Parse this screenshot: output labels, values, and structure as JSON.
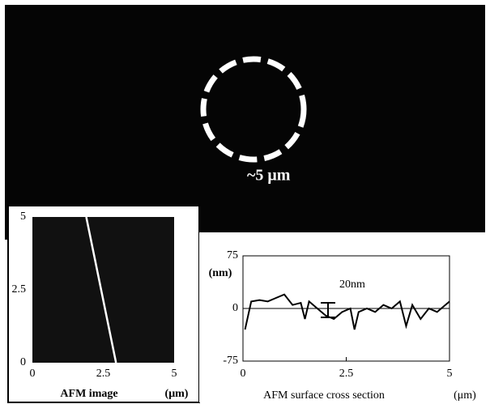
{
  "micrograph": {
    "scale_label": "~5 μm"
  },
  "afm_image": {
    "title": "AFM image",
    "unit": "(μm)",
    "xlim": [
      0,
      5
    ],
    "ylim": [
      0,
      5
    ],
    "xticks": [
      0,
      {
        "value": 2.5,
        "label": "2.5"
      },
      5
    ],
    "yticks": [
      0,
      {
        "value": 2.5,
        "label": "2.5"
      },
      5
    ],
    "line": {
      "x": [
        1.9,
        2.95
      ],
      "y": [
        5,
        0
      ]
    }
  },
  "cross_section": {
    "type": "line",
    "title": "AFM surface cross section",
    "unit": "(μm)",
    "y_label": "(nm)",
    "annotation": "20nm",
    "xlim": [
      0,
      5
    ],
    "ylim": [
      -75,
      75
    ],
    "xticks": [
      0,
      {
        "value": 2.5,
        "label": "2.5"
      },
      5
    ],
    "yticks": [
      -75,
      0,
      75
    ],
    "x": [
      0.05,
      0.2,
      0.4,
      0.6,
      0.8,
      1.0,
      1.2,
      1.4,
      1.5,
      1.6,
      1.8,
      2.0,
      2.2,
      2.4,
      2.6,
      2.7,
      2.8,
      3.0,
      3.2,
      3.4,
      3.6,
      3.8,
      3.95,
      4.1,
      4.3,
      4.5,
      4.7,
      5.0
    ],
    "values": [
      -30,
      10,
      12,
      10,
      15,
      20,
      5,
      8,
      -15,
      10,
      0,
      -10,
      -15,
      -5,
      0,
      -30,
      -5,
      0,
      -5,
      5,
      0,
      10,
      -25,
      5,
      -15,
      0,
      -5,
      10
    ]
  }
}
